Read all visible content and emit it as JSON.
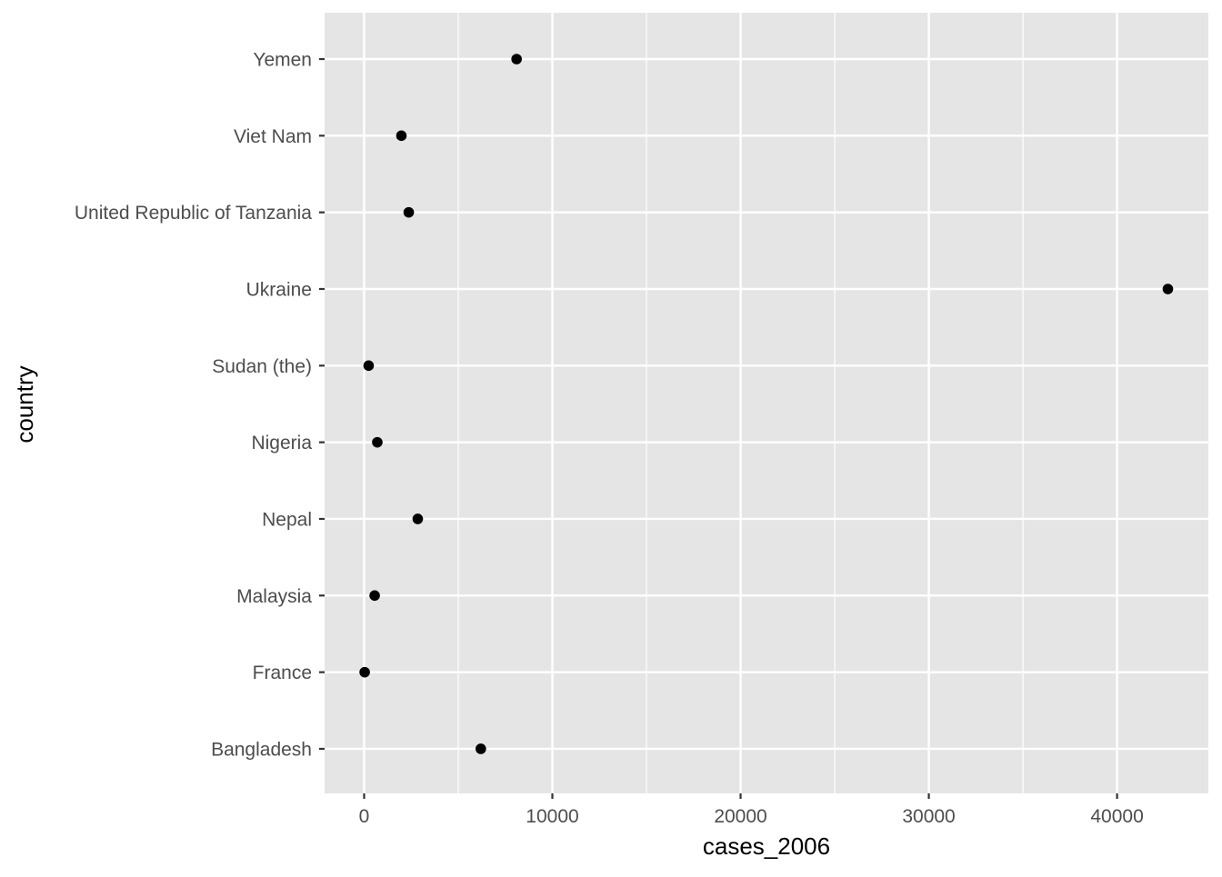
{
  "chart_data": {
    "type": "scatter",
    "xlabel": "cases_2006",
    "ylabel": "country",
    "categories": [
      "Bangladesh",
      "France",
      "Malaysia",
      "Nepal",
      "Nigeria",
      "Sudan (the)",
      "Ukraine",
      "United Republic of Tanzania",
      "Viet Nam",
      "Yemen"
    ],
    "values": [
      6200,
      30,
      560,
      2850,
      700,
      240,
      42700,
      2370,
      1980,
      8100
    ],
    "xlim": [
      -2100,
      44850
    ],
    "x_ticks": [
      0,
      10000,
      20000,
      30000,
      40000
    ],
    "x_tick_labels": [
      "0",
      "10000",
      "20000",
      "30000",
      "40000"
    ],
    "x_minor_ticks": [
      5000,
      15000,
      25000,
      35000
    ],
    "grid": true,
    "legend": "none",
    "colors": {
      "panel_background": "#e5e5e5",
      "grid": "#ffffff",
      "point": "#000000",
      "tick_label": "#4d4d4d",
      "axis_title": "#000000"
    }
  }
}
